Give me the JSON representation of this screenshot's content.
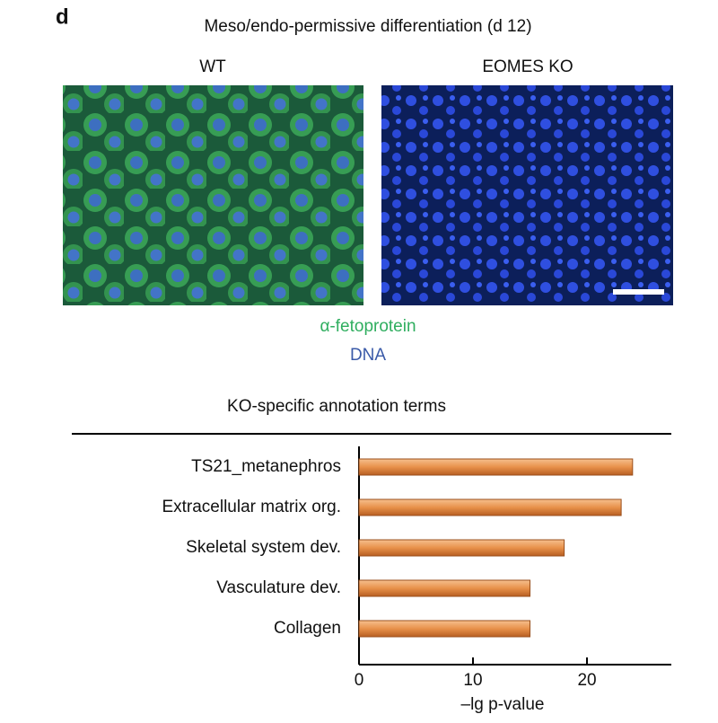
{
  "figure": {
    "panel_label": "d",
    "title": "Meso/endo-permissive differentiation (d 12)",
    "left_image_label": "WT",
    "right_image_label": "EOMES KO",
    "legend_green": "α-fetoprotein",
    "legend_blue": "DNA"
  },
  "chart_data": {
    "type": "hbar",
    "title": "KO-specific annotation terms",
    "categories": [
      "TS21_metanephros",
      "Extracellular matrix org.",
      "Skeletal system dev.",
      "Vasculature dev.",
      "Collagen"
    ],
    "values": [
      24,
      23,
      18,
      15,
      15
    ],
    "color": "#e8914a",
    "xlim": [
      0,
      27.4
    ],
    "xticks": [
      0,
      10,
      20
    ],
    "xlabel": "–lg p-value"
  }
}
